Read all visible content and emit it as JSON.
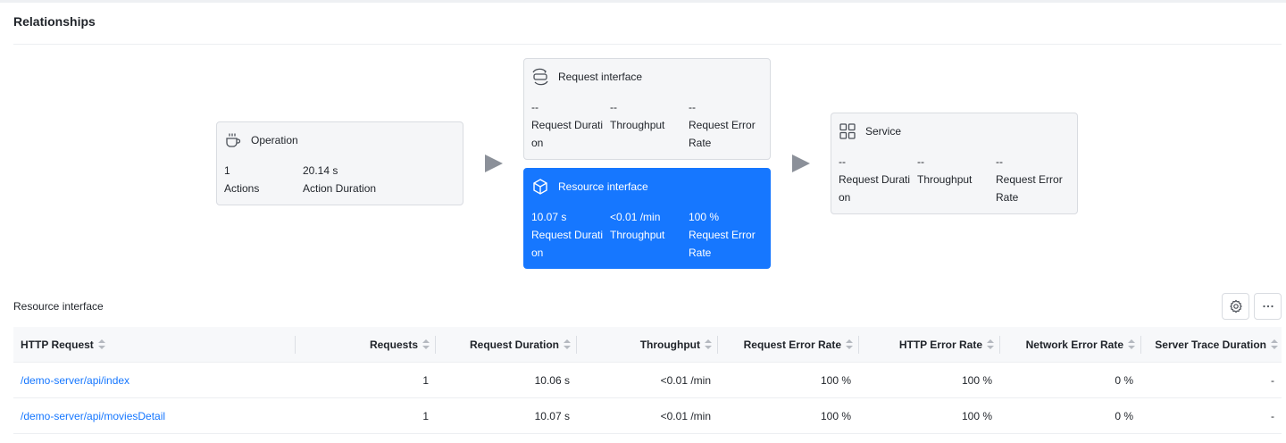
{
  "page": {
    "title": "Relationships"
  },
  "operation_card": {
    "title": "Operation",
    "icon": "coffee-cup-icon",
    "metrics": [
      {
        "value": "1",
        "label": "Actions"
      },
      {
        "value": "20.14 s",
        "label": "Action Duration"
      }
    ]
  },
  "request_card": {
    "title": "Request interface",
    "icon": "api-interface-icon",
    "metrics": [
      {
        "value": "--",
        "label": "Request Duration"
      },
      {
        "value": "--",
        "label": "Throughput"
      },
      {
        "value": "--",
        "label": "Request Error Rate"
      }
    ]
  },
  "resource_card": {
    "title": "Resource interface",
    "icon": "cube-icon",
    "metrics": [
      {
        "value": "10.07 s",
        "label": "Request Duration"
      },
      {
        "value": "<0.01 /min",
        "label": "Throughput"
      },
      {
        "value": "100 %",
        "label": "Request Error Rate"
      }
    ]
  },
  "service_card": {
    "title": "Service",
    "icon": "grid-apps-icon",
    "metrics": [
      {
        "value": "--",
        "label": "Request Duration"
      },
      {
        "value": "--",
        "label": "Throughput"
      },
      {
        "value": "--",
        "label": "Request Error Rate"
      }
    ]
  },
  "resource_section": {
    "label": "Resource interface",
    "settings_icon": "settings-gear-icon",
    "more_icon": "more-dots-icon"
  },
  "table": {
    "columns": [
      "HTTP Request",
      "Requests",
      "Request Duration",
      "Throughput",
      "Request Error Rate",
      "HTTP Error Rate",
      "Network Error Rate",
      "Server Trace Duration"
    ],
    "rows": [
      {
        "request": "/demo-server/api/index",
        "requests": "1",
        "duration": "10.06 s",
        "throughput": "<0.01 /min",
        "request_error_rate": "100 %",
        "http_error_rate": "100 %",
        "network_error_rate": "0 %",
        "server_trace_duration": "-"
      },
      {
        "request": "/demo-server/api/moviesDetail",
        "requests": "1",
        "duration": "10.07 s",
        "throughput": "<0.01 /min",
        "request_error_rate": "100 %",
        "http_error_rate": "100 %",
        "network_error_rate": "0 %",
        "server_trace_duration": "-"
      }
    ]
  },
  "colors": {
    "accent": "#1677ff",
    "card_bg": "#f5f6f8",
    "arrow": "#8b9099"
  }
}
